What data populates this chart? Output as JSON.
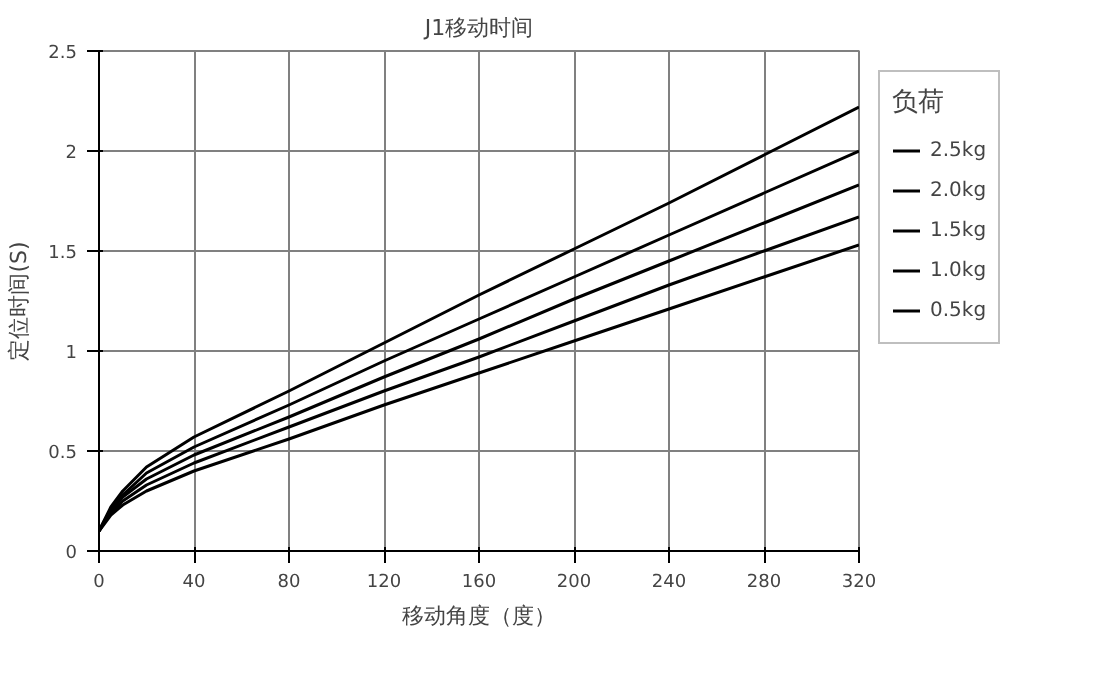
{
  "chart_data": {
    "type": "line",
    "title": "J1移动时间",
    "xlabel": "移动角度（度）",
    "ylabel": "定位时间(S)",
    "legend_title": "负荷",
    "x": [
      0,
      5,
      10,
      20,
      40,
      80,
      120,
      160,
      200,
      240,
      280,
      320
    ],
    "series": [
      {
        "name": "2.5kg",
        "color": "#000000",
        "values": [
          0.1,
          0.22,
          0.3,
          0.42,
          0.57,
          0.8,
          1.04,
          1.28,
          1.51,
          1.74,
          1.98,
          2.22
        ]
      },
      {
        "name": "2.0kg",
        "color": "#000000",
        "values": [
          0.1,
          0.21,
          0.28,
          0.39,
          0.52,
          0.73,
          0.95,
          1.16,
          1.37,
          1.58,
          1.79,
          2.0
        ]
      },
      {
        "name": "1.5kg",
        "color": "#000000",
        "values": [
          0.1,
          0.2,
          0.27,
          0.36,
          0.48,
          0.67,
          0.87,
          1.06,
          1.26,
          1.45,
          1.64,
          1.83
        ]
      },
      {
        "name": "1.0kg",
        "color": "#000000",
        "values": [
          0.1,
          0.19,
          0.25,
          0.33,
          0.44,
          0.62,
          0.8,
          0.97,
          1.15,
          1.33,
          1.5,
          1.67
        ]
      },
      {
        "name": "0.5kg",
        "color": "#000000",
        "values": [
          0.1,
          0.18,
          0.23,
          0.3,
          0.4,
          0.56,
          0.73,
          0.89,
          1.05,
          1.21,
          1.37,
          1.53
        ]
      }
    ],
    "xlim": [
      0,
      320
    ],
    "xticks": [
      0,
      40,
      80,
      120,
      160,
      200,
      240,
      280,
      320
    ],
    "ylim": [
      0,
      2.5
    ],
    "yticks": [
      0,
      0.5,
      1,
      1.5,
      2,
      2.5
    ],
    "grid": true,
    "legend": "top right",
    "marker": "none",
    "line_style": "solid"
  }
}
